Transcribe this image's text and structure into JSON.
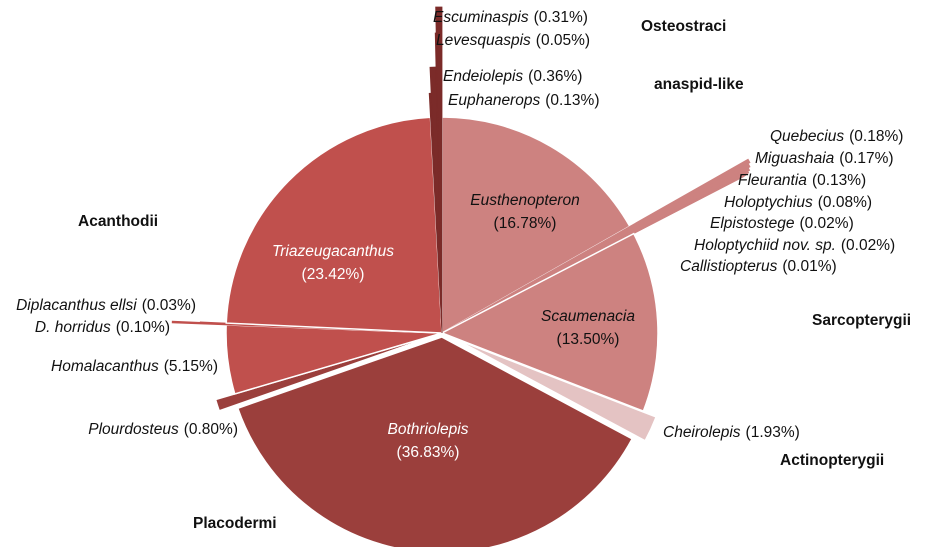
{
  "chart_data": {
    "type": "pie",
    "groups": [
      {
        "name": "Sarcopterygii",
        "color": "#cd8280",
        "categories": [
          "Eusthenopteron",
          "Quebecius",
          "Miguashaia",
          "Fleurantia",
          "Holoptychius",
          "Elpistostege",
          "Holoptychiid nov. sp.",
          "Callistiopterus",
          "Scaumenacia"
        ],
        "values": [
          16.78,
          0.18,
          0.17,
          0.13,
          0.08,
          0.02,
          0.02,
          0.01,
          13.5
        ],
        "value_labels": [
          "(16.78%)",
          "(0.18%)",
          "(0.17%)",
          "(0.13%)",
          "(0.08%)",
          "(0.02%)",
          "(0.02%)",
          "(0.01%)",
          "(13.50%)"
        ]
      },
      {
        "name": "Actinopterygii",
        "color": "#e4c3c3",
        "categories": [
          "Cheirolepis"
        ],
        "values": [
          1.93
        ],
        "value_labels": [
          "(1.93%)"
        ]
      },
      {
        "name": "Placodermi",
        "color": "#9b3f3c",
        "categories": [
          "Bothriolepis",
          "Plourdosteus"
        ],
        "values": [
          36.83,
          0.8
        ],
        "value_labels": [
          "(36.83%)",
          "(0.80%)"
        ]
      },
      {
        "name": "Acanthodii",
        "color": "#c0504d",
        "categories": [
          "Homalacanthus",
          "D. horridus",
          "Diplacanthus ellsi",
          "Triazeugacanthus"
        ],
        "values": [
          5.15,
          0.1,
          0.03,
          23.42
        ],
        "value_labels": [
          "(5.15%)",
          "(0.10%)",
          "(0.03%)",
          "(23.42%)"
        ]
      },
      {
        "name": "anaspid-like",
        "color": "#7b2b29",
        "categories": [
          "Euphanerops",
          "Endeiolepis"
        ],
        "values": [
          0.13,
          0.36
        ],
        "value_labels": [
          "(0.13%)",
          "(0.36%)"
        ]
      },
      {
        "name": "Osteostraci",
        "color": "#7b2b29",
        "categories": [
          "Levesquaspis",
          "Escuminaspis"
        ],
        "values": [
          0.05,
          0.31
        ],
        "value_labels": [
          "(0.05%)",
          "(0.31%)"
        ]
      }
    ]
  }
}
